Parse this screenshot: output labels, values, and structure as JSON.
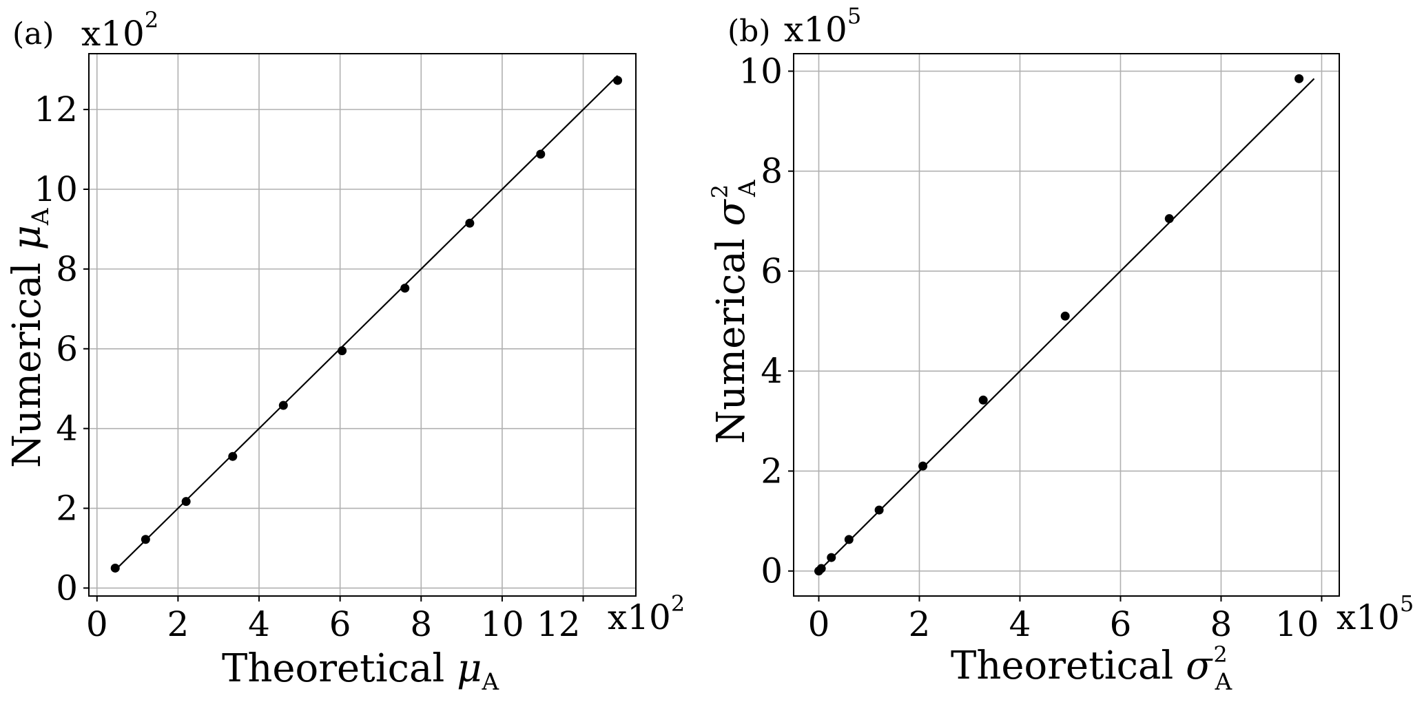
{
  "chart_data": [
    {
      "type": "scatter",
      "panel_label": "(a)",
      "xlabel": {
        "text": "Theoretical",
        "symbol": "μ",
        "subscript": "A",
        "superscript": ""
      },
      "ylabel": {
        "text": "Numerical",
        "symbol": "μ",
        "subscript": "A",
        "superscript": ""
      },
      "x_multiplier": {
        "base": "x10",
        "exp": "2"
      },
      "y_multiplier": {
        "base": "x10",
        "exp": "2"
      },
      "xlim": [
        -0.2,
        13.3
      ],
      "ylim": [
        -0.2,
        13.4
      ],
      "xticks": [
        0,
        2,
        4,
        6,
        8,
        10,
        12
      ],
      "yticks": [
        0,
        2,
        4,
        6,
        8,
        10,
        12
      ],
      "grid": true,
      "series": [
        {
          "kind": "points",
          "x": [
            0.45,
            1.2,
            2.2,
            3.35,
            4.6,
            6.05,
            7.6,
            9.2,
            10.95,
            12.85
          ],
          "y": [
            0.5,
            1.22,
            2.17,
            3.3,
            4.58,
            5.95,
            7.52,
            9.15,
            10.88,
            12.73
          ]
        },
        {
          "kind": "line",
          "x": [
            0.45,
            12.85
          ],
          "y": [
            0.45,
            12.85
          ]
        }
      ]
    },
    {
      "type": "scatter",
      "panel_label": "(b)",
      "xlabel": {
        "text": "Theoretical",
        "symbol": "σ",
        "subscript": "A",
        "superscript": "2"
      },
      "ylabel": {
        "text": "Numerical",
        "symbol": "σ",
        "subscript": "A",
        "superscript": "2"
      },
      "x_multiplier": {
        "base": "x10",
        "exp": "5"
      },
      "y_multiplier": {
        "base": "x10",
        "exp": "5"
      },
      "xlim": [
        -0.5,
        10.35
      ],
      "ylim": [
        -0.5,
        10.35
      ],
      "xticks": [
        0,
        2,
        4,
        6,
        8,
        10
      ],
      "yticks": [
        0,
        2,
        4,
        6,
        8,
        10
      ],
      "grid": true,
      "series": [
        {
          "kind": "points",
          "x": [
            0.0,
            0.05,
            0.25,
            0.6,
            1.2,
            2.07,
            3.27,
            4.9,
            6.97,
            9.55
          ],
          "y": [
            0.0,
            0.05,
            0.27,
            0.63,
            1.22,
            2.1,
            3.42,
            5.1,
            7.05,
            9.85
          ]
        },
        {
          "kind": "line",
          "x": [
            0.0,
            9.85
          ],
          "y": [
            0.0,
            9.85
          ]
        }
      ]
    }
  ]
}
